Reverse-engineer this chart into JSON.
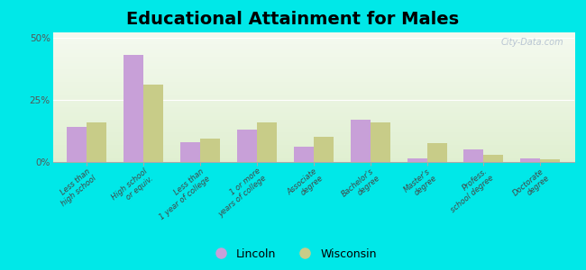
{
  "title": "Educational Attainment for Males",
  "categories": [
    "Less than\nhigh school",
    "High school\nor equiv.",
    "Less than\n1 year of college",
    "1 or more\nyears of college",
    "Associate\ndegree",
    "Bachelor's\ndegree",
    "Master's\ndegree",
    "Profess.\nschool degree",
    "Doctorate\ndegree"
  ],
  "lincoln": [
    14.0,
    43.0,
    8.0,
    13.0,
    6.0,
    17.0,
    1.5,
    5.0,
    1.5
  ],
  "wisconsin": [
    16.0,
    31.0,
    9.5,
    16.0,
    10.0,
    16.0,
    7.5,
    3.0,
    1.0
  ],
  "lincoln_color": "#c8a0d8",
  "wisconsin_color": "#c8cc88",
  "background_outer": "#00e8e8",
  "background_inner": "#e8f0dc",
  "ylim": [
    0,
    52
  ],
  "yticks": [
    0,
    25,
    50
  ],
  "ytick_labels": [
    "0%",
    "25%",
    "50%"
  ],
  "bar_width": 0.35,
  "title_fontsize": 14,
  "legend_lincoln": "Lincoln",
  "legend_wisconsin": "Wisconsin"
}
